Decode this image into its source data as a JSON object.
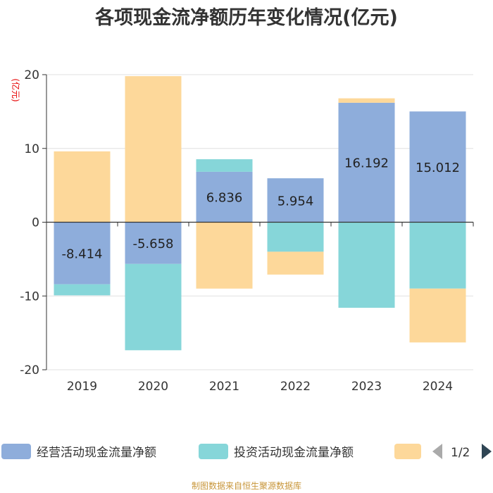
{
  "chart_data": {
    "type": "bar",
    "stacked": true,
    "title": "各项现金流净额历年变化情况(亿元)",
    "unit_label": "(亿元)",
    "categories": [
      "2019",
      "2020",
      "2021",
      "2022",
      "2023",
      "2024"
    ],
    "ylim": [
      -20,
      20
    ],
    "yticks": [
      20,
      10,
      0,
      -10,
      -20
    ],
    "grid": true,
    "series": [
      {
        "name": "经营活动现金流量净额",
        "color": "#8eaddb",
        "values": [
          -8.414,
          -5.658,
          6.836,
          5.954,
          16.192,
          15.012
        ],
        "show_labels": true
      },
      {
        "name": "投资活动现金流量净额",
        "color": "#86d6d9",
        "values": [
          -1.5,
          -11.7,
          1.7,
          -4.0,
          -11.6,
          -9.0
        ],
        "show_labels": false
      },
      {
        "name": "",
        "color": "#fdd89a",
        "values": [
          9.6,
          19.8,
          -9.0,
          -3.1,
          0.6,
          -7.3
        ],
        "show_labels": false
      }
    ],
    "data_labels": [
      "-8.414",
      "-5.658",
      "6.836",
      "5.954",
      "16.192",
      "15.012"
    ]
  },
  "legend": {
    "items": [
      {
        "label": "经营活动现金流量净额",
        "color": "#8eaddb"
      },
      {
        "label": "投资活动现金流量净额",
        "color": "#86d6d9"
      },
      {
        "label": "",
        "color": "#fdd89a"
      }
    ],
    "page": "1/2",
    "prev_color": "#aaaaaa",
    "next_color": "#2f4554"
  },
  "source": "制图数据来自恒生聚源数据库"
}
